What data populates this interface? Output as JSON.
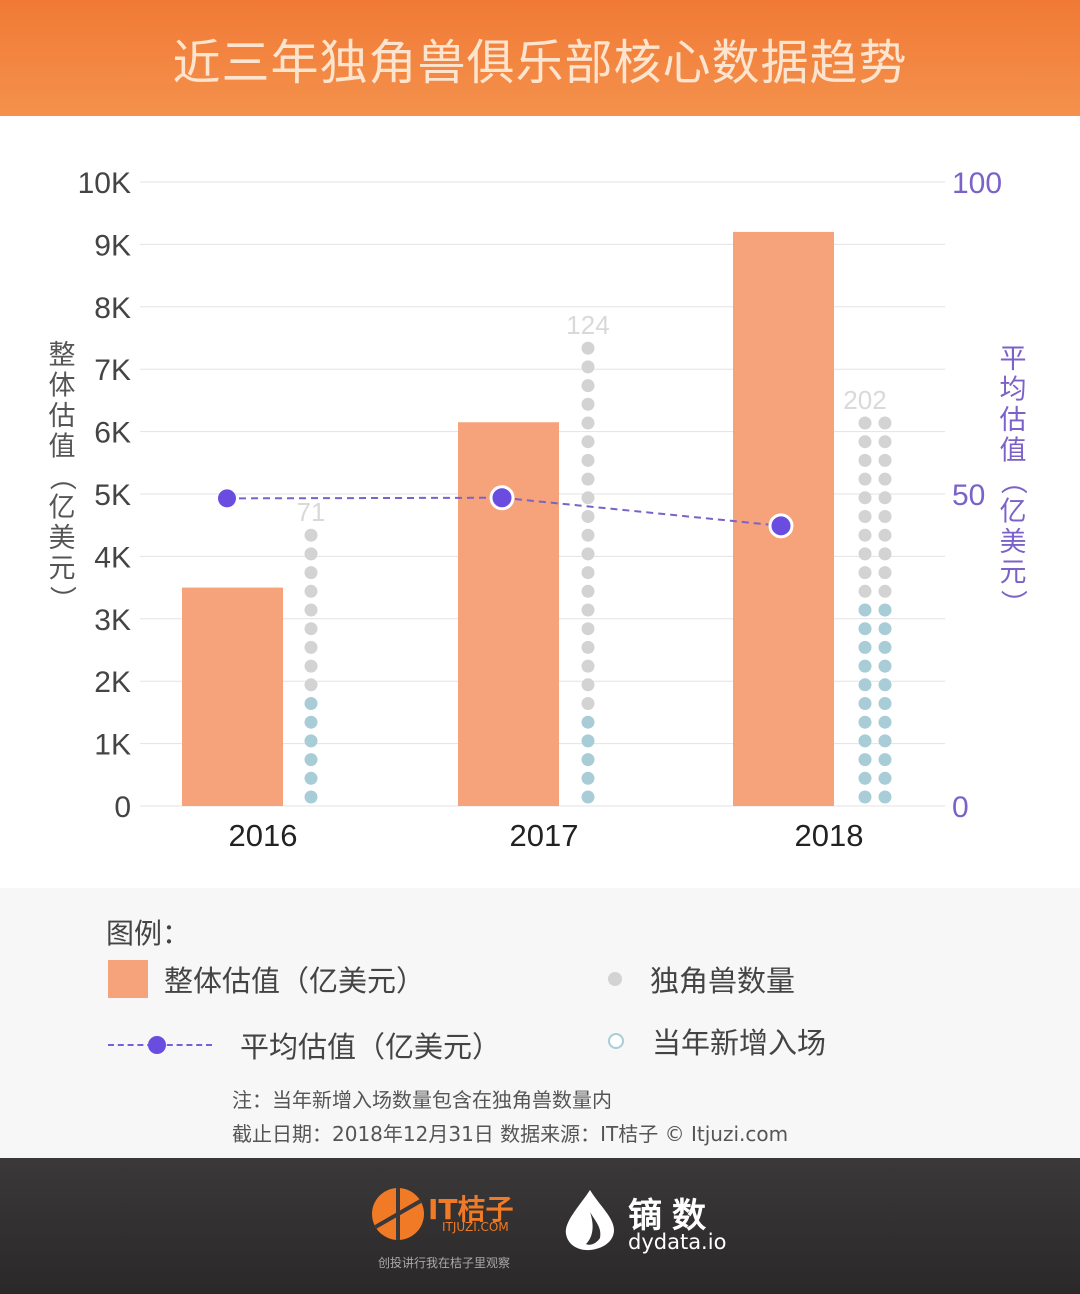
{
  "header": {
    "title": "近三年独角兽俱乐部核心数据趋势"
  },
  "chart_data": {
    "type": "bar",
    "categories": [
      "2016",
      "2017",
      "2018"
    ],
    "series": [
      {
        "name": "整体估值（亿美元）",
        "type": "bar",
        "axis": "left",
        "values": [
          3500,
          6150,
          9200
        ],
        "color": "#f6a27b"
      },
      {
        "name": "平均估值（亿美元）",
        "type": "line",
        "axis": "right",
        "values": [
          49.3,
          49.4,
          44.9
        ],
        "color": "#6a4ce0"
      },
      {
        "name": "独角兽数量",
        "type": "dots",
        "values": [
          71,
          124,
          202
        ],
        "color": "#d3d3d3"
      },
      {
        "name": "当年新增入场",
        "type": "dots",
        "color": "#a9cdd6"
      }
    ],
    "left_axis": {
      "label": "整体估值（亿美元）",
      "ticks": [
        "0",
        "1K",
        "2K",
        "3K",
        "4K",
        "5K",
        "6K",
        "7K",
        "8K",
        "9K",
        "10K"
      ],
      "ylim": [
        0,
        10000
      ]
    },
    "right_axis": {
      "label": "平均估值（亿美元）",
      "ticks": [
        "0",
        "50",
        "100"
      ],
      "ylim": [
        0,
        100
      ]
    },
    "data_labels": [
      "71",
      "124",
      "202"
    ],
    "grid": true
  },
  "legend": {
    "title": "图例：",
    "bar_label": "整体估值（亿美元）",
    "line_label": "平均估值（亿美元）",
    "count_label": "独角兽数量",
    "new_label": "当年新增入场"
  },
  "notes": {
    "note": "注：当年新增入场数量包含在独角兽数量内",
    "source": "截止日期：2018年12月31日    数据来源：IT桔子 © Itjuzi.com"
  },
  "footer": {
    "brand1": {
      "name": "IT桔子",
      "url": "ITJUZI.COM",
      "slogan": "创投讲行我在桔子里观察"
    },
    "brand2": {
      "name": "镝数",
      "url": "dydata.io"
    }
  },
  "colors": {
    "header": "#f07a35",
    "footer": "#333131",
    "accent_purple": "#6a4ce0"
  }
}
